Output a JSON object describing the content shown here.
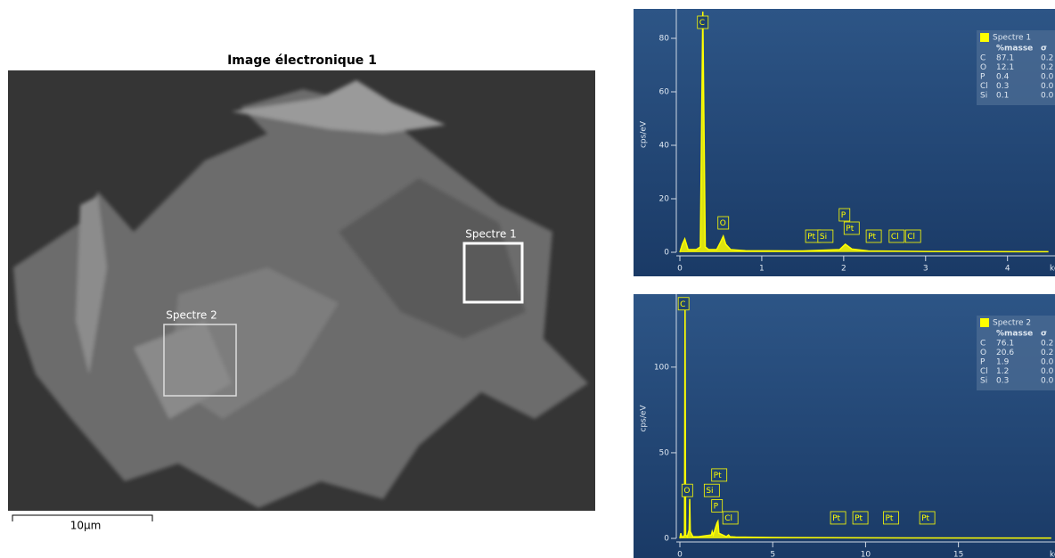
{
  "image": {
    "title": "Image électronique 1",
    "regions": [
      "Spectre 1",
      "Spectre 2"
    ],
    "scale_bar": "10µm"
  },
  "chart_data": [
    {
      "type": "line",
      "xlabel": "keV",
      "ylabel": "cps/eV",
      "x": [
        0,
        0.03,
        0.06,
        0.1,
        0.2,
        0.25,
        0.28,
        0.31,
        0.35,
        0.45,
        0.5,
        0.53,
        0.56,
        0.62,
        0.8,
        1.5,
        1.95,
        2.02,
        2.1,
        2.3,
        3,
        4.5
      ],
      "series": [
        {
          "name": "Spectre 1",
          "color": "#ffff00",
          "values": [
            0,
            3,
            5,
            1,
            1,
            2,
            90,
            2,
            1,
            1,
            4,
            6,
            3,
            1,
            0.6,
            0.5,
            1,
            3,
            1.2,
            0.5,
            0.3,
            0.2
          ]
        }
      ],
      "xlim": [
        0,
        4.58
      ],
      "xticks": [
        0,
        1,
        2,
        3,
        4
      ],
      "ylim": [
        0,
        88
      ],
      "yticks": [
        0,
        20,
        40,
        60,
        80
      ],
      "peak_labels": [
        {
          "label": "C",
          "x": 0.28,
          "y": 86
        },
        {
          "label": "O",
          "x": 0.53,
          "y": 11
        },
        {
          "label": "Pt",
          "x": 1.6,
          "y": 6
        },
        {
          "label": "Si",
          "x": 1.75,
          "y": 6
        },
        {
          "label": "P",
          "x": 2.01,
          "y": 14
        },
        {
          "label": "Pt",
          "x": 2.07,
          "y": 9
        },
        {
          "label": "Pt",
          "x": 2.34,
          "y": 6
        },
        {
          "label": "Cl",
          "x": 2.62,
          "y": 6
        },
        {
          "label": "Cl",
          "x": 2.82,
          "y": 6
        }
      ],
      "legend": "top-right",
      "table": {
        "columns": [
          "%masse",
          "σ"
        ],
        "rows": [
          [
            "C",
            "87.1",
            "0.2"
          ],
          [
            "O",
            "12.1",
            "0.2"
          ],
          [
            "P",
            "0.4",
            "0.0"
          ],
          [
            "Cl",
            "0.3",
            "0.0"
          ],
          [
            "Si",
            "0.1",
            "0.0"
          ]
        ]
      }
    },
    {
      "type": "line",
      "xlabel": "keV",
      "ylabel": "cps/eV",
      "x": [
        0,
        0.05,
        0.1,
        0.2,
        0.25,
        0.28,
        0.31,
        0.4,
        0.5,
        0.53,
        0.56,
        0.7,
        1,
        1.7,
        1.74,
        1.8,
        2.0,
        2.05,
        2.1,
        2.5,
        2.62,
        2.7,
        3,
        5,
        10,
        20
      ],
      "series": [
        {
          "name": "Spectre 2",
          "color": "#ffff00",
          "values": [
            0,
            3,
            1,
            1,
            2,
            138,
            2,
            1,
            5,
            23,
            4,
            1,
            1,
            2,
            4,
            2,
            9,
            10,
            3,
            1,
            2,
            1,
            0.8,
            0.5,
            0.3,
            0.2
          ]
        }
      ],
      "xlim": [
        0,
        20.2
      ],
      "xticks": [
        0,
        5,
        10,
        15
      ],
      "ylim": [
        0,
        140
      ],
      "yticks": [
        0,
        50,
        100
      ],
      "peak_labels": [
        {
          "label": "C",
          "x": 0.2,
          "y": 137
        },
        {
          "label": "O",
          "x": 0.4,
          "y": 28
        },
        {
          "label": "Si",
          "x": 1.6,
          "y": 28
        },
        {
          "label": "Pt",
          "x": 2.0,
          "y": 37
        },
        {
          "label": "P",
          "x": 2.0,
          "y": 19
        },
        {
          "label": "Cl",
          "x": 2.6,
          "y": 12
        },
        {
          "label": "Pt",
          "x": 8.4,
          "y": 12
        },
        {
          "label": "Pt",
          "x": 9.6,
          "y": 12
        },
        {
          "label": "Pt",
          "x": 11.25,
          "y": 12
        },
        {
          "label": "Pt",
          "x": 13.2,
          "y": 12
        }
      ],
      "legend": "top-right",
      "table": {
        "columns": [
          "%masse",
          "σ"
        ],
        "rows": [
          [
            "C",
            "76.1",
            "0.2"
          ],
          [
            "O",
            "20.6",
            "0.2"
          ],
          [
            "P",
            "1.9",
            "0.0"
          ],
          [
            "Cl",
            "1.2",
            "0.0"
          ],
          [
            "Si",
            "0.3",
            "0.0"
          ]
        ]
      }
    }
  ]
}
